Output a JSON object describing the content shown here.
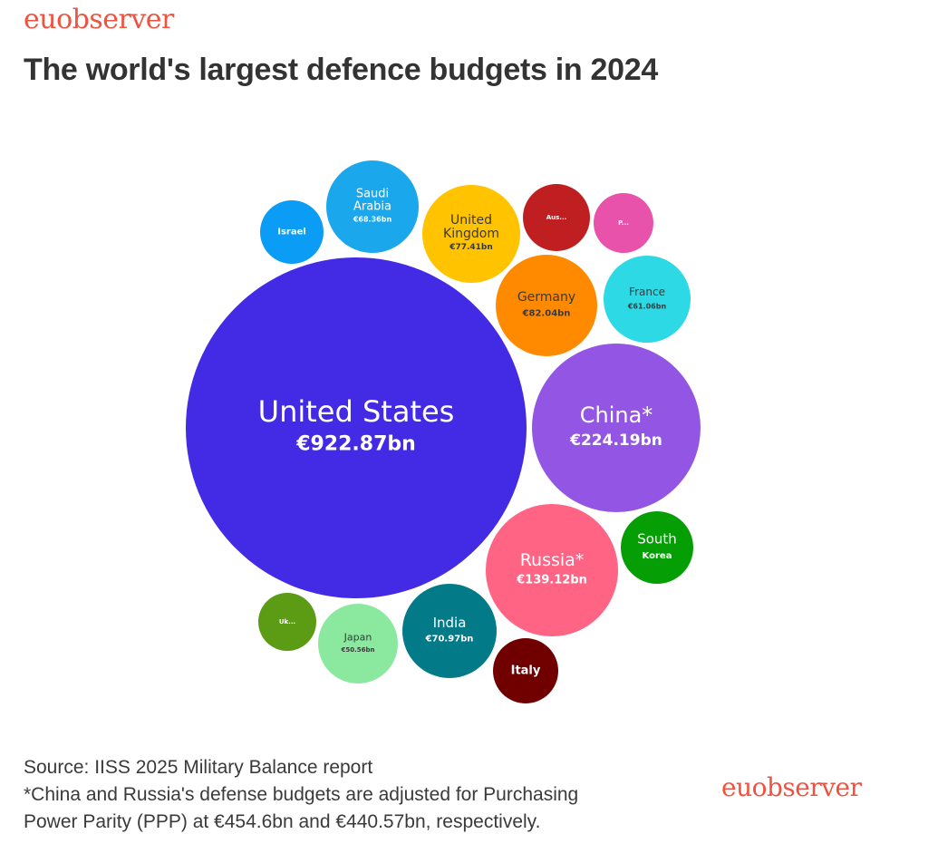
{
  "brand": {
    "logo_top": "euobserver",
    "logo_bottom": "euobserver",
    "color": "#ee5340"
  },
  "title": "The world's largest defence budgets in 2024",
  "footer": {
    "source": "Source: IISS 2025 Military Balance report",
    "note_line1": "*China and Russia's defense budgets are adjusted for Purchasing",
    "note_line2": "Power Parity (PPP) at €454.6bn and €440.57bn, respectively."
  },
  "chart_data": {
    "type": "bubble",
    "title": "The world's largest defence budgets in 2024",
    "unit": "€bn",
    "bubbles": [
      {
        "id": "united-states",
        "label_lines": [
          "United States"
        ],
        "value_label": "€922.87bn",
        "value": 922.87,
        "color": "#432ae4",
        "text_color": "#ffffff"
      },
      {
        "id": "china",
        "label_lines": [
          "China*"
        ],
        "value_label": "€224.19bn",
        "value": 224.19,
        "color": "#9355e3",
        "text_color": "#ffffff"
      },
      {
        "id": "russia",
        "label_lines": [
          "Russia*"
        ],
        "value_label": "€139.12bn",
        "value": 139.12,
        "color": "#ff6485",
        "text_color": "#ffffff"
      },
      {
        "id": "germany",
        "label_lines": [
          "Germany"
        ],
        "value_label": "€82.04bn",
        "value": 82.04,
        "color": "#ff8a00",
        "text_color": "#3a3a3a"
      },
      {
        "id": "united-kingdom",
        "label_lines": [
          "United",
          "Kingdom"
        ],
        "value_label": "€77.41bn",
        "value": 77.41,
        "color": "#ffc300",
        "text_color": "#3a3a3a"
      },
      {
        "id": "india",
        "label_lines": [
          "India"
        ],
        "value_label": "€70.97bn",
        "value": 70.97,
        "color": "#037a88",
        "text_color": "#ffffff"
      },
      {
        "id": "saudi-arabia",
        "label_lines": [
          "Saudi",
          "Arabia"
        ],
        "value_label": "€68.36bn",
        "value": 68.36,
        "color": "#1aa7ec",
        "text_color": "#ffffff"
      },
      {
        "id": "france",
        "label_lines": [
          "France"
        ],
        "value_label": "€61.06bn",
        "value": 61.06,
        "color": "#2dd9e4",
        "text_color": "#3a3a3a"
      },
      {
        "id": "japan",
        "label_lines": [
          "Japan"
        ],
        "value_label": "€50.56bn",
        "value": 50.56,
        "color": "#8ae89f",
        "text_color": "#3a3a3a"
      },
      {
        "id": "south-korea",
        "label_lines": [
          "South"
        ],
        "value_label": "Korea",
        "value": null,
        "color": "#059e04",
        "text_color": "#ffffff"
      },
      {
        "id": "australia",
        "label_lines": [],
        "value_label": "Aus...",
        "value": null,
        "color": "#c01f22",
        "text_color": "#ffffff"
      },
      {
        "id": "italy",
        "label_lines": [],
        "value_label": "Italy",
        "value": null,
        "color": "#700000",
        "text_color": "#ffffff"
      },
      {
        "id": "israel",
        "label_lines": [],
        "value_label": "Israel",
        "value": null,
        "color": "#0b9cf6",
        "text_color": "#ffffff"
      },
      {
        "id": "poland",
        "label_lines": [],
        "value_label": "P...",
        "value": null,
        "color": "#e952ab",
        "text_color": "#ffffff"
      },
      {
        "id": "ukraine",
        "label_lines": [],
        "value_label": "Uk...",
        "value": null,
        "color": "#5c9b14",
        "text_color": "#ffffff"
      }
    ]
  }
}
